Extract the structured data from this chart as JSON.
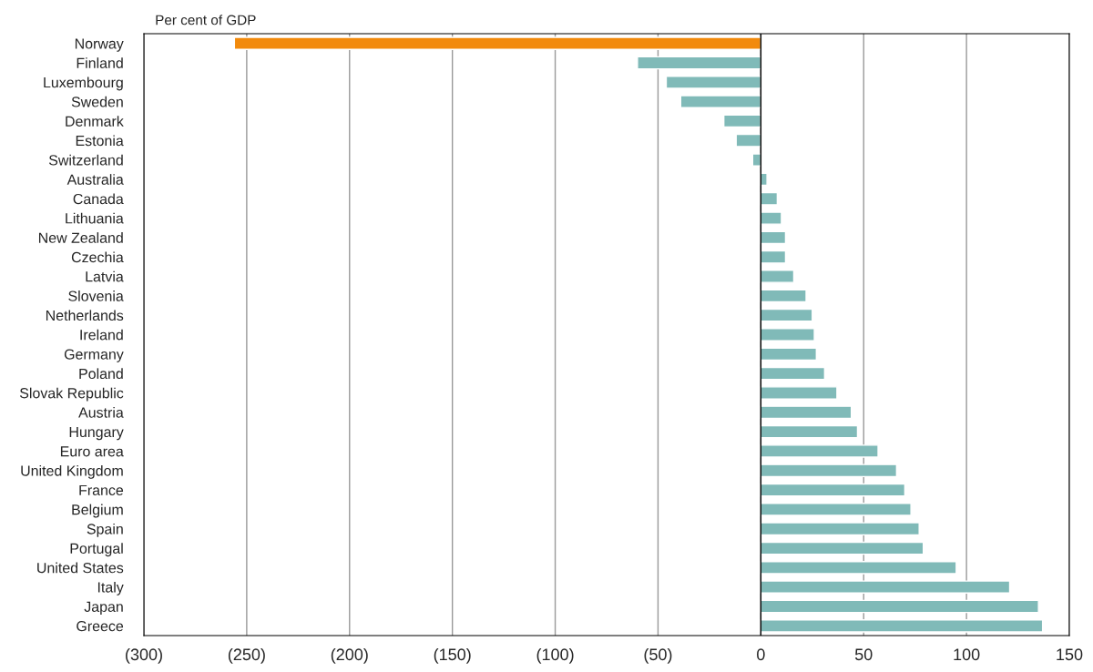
{
  "chart_data": {
    "type": "bar",
    "orientation": "horizontal",
    "ylabel": "Per cent of GDP",
    "categories": [
      "Norway",
      "Finland",
      "Luxembourg",
      "Sweden",
      "Denmark",
      "Estonia",
      "Switzerland",
      "Australia",
      "Canada",
      "Lithuania",
      "New Zealand",
      "Czechia",
      "Latvia",
      "Slovenia",
      "Netherlands",
      "Ireland",
      "Germany",
      "Poland",
      "Slovak Republic",
      "Austria",
      "Hungary",
      "Euro area",
      "United Kingdom",
      "France",
      "Belgium",
      "Spain",
      "Portugal",
      "United States",
      "Italy",
      "Japan",
      "Greece"
    ],
    "values": [
      -256,
      -60,
      -46,
      -39,
      -18,
      -12,
      -4,
      3,
      8,
      10,
      12,
      12,
      16,
      22,
      25,
      26,
      27,
      31,
      37,
      44,
      47,
      57,
      66,
      70,
      73,
      77,
      79,
      95,
      121,
      135,
      137
    ],
    "colors": [
      "#f28a0c",
      "#80bab8",
      "#80bab8",
      "#80bab8",
      "#80bab8",
      "#80bab8",
      "#80bab8",
      "#80bab8",
      "#80bab8",
      "#80bab8",
      "#80bab8",
      "#80bab8",
      "#80bab8",
      "#80bab8",
      "#80bab8",
      "#80bab8",
      "#80bab8",
      "#80bab8",
      "#80bab8",
      "#80bab8",
      "#80bab8",
      "#80bab8",
      "#80bab8",
      "#80bab8",
      "#80bab8",
      "#80bab8",
      "#80bab8",
      "#80bab8",
      "#80bab8",
      "#80bab8",
      "#80bab8"
    ],
    "xlim": [
      -300,
      150
    ],
    "xticks": [
      {
        "value": -300,
        "label": "(300)"
      },
      {
        "value": -250,
        "label": "(250)"
      },
      {
        "value": -200,
        "label": "(200)"
      },
      {
        "value": -150,
        "label": "(150)"
      },
      {
        "value": -100,
        "label": "(100)"
      },
      {
        "value": -50,
        "label": "(50)"
      },
      0,
      50,
      100,
      150
    ],
    "ref_lines": [
      {
        "axis": "x",
        "value": 0,
        "color": "#000000",
        "line_style": "solid"
      }
    ],
    "grid": "x",
    "legend": false
  }
}
